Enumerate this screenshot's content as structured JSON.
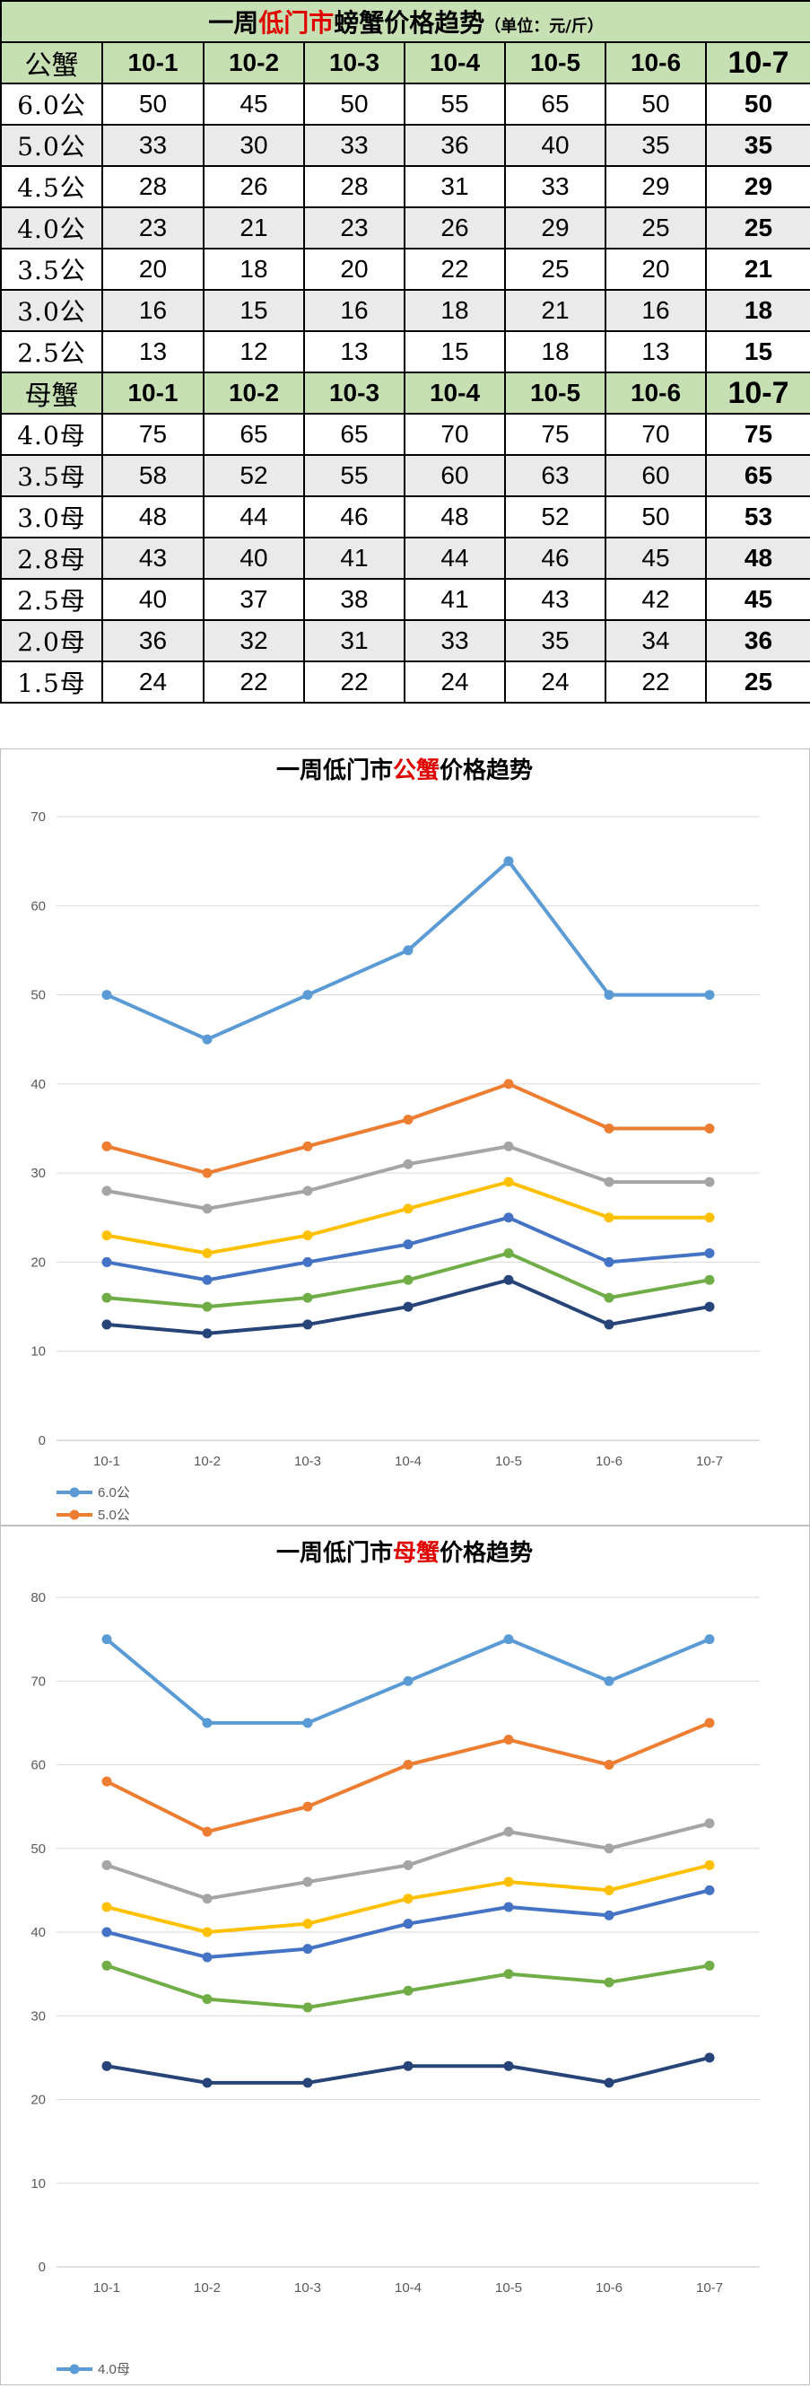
{
  "table": {
    "title_left": "一周",
    "title_red": "低门市",
    "title_right": "螃蟹价格趋势",
    "title_unit": "（单位：元/斤）",
    "male_header": "公蟹",
    "female_header": "母蟹",
    "dates": [
      "10-1",
      "10-2",
      "10-3",
      "10-4",
      "10-5",
      "10-6",
      "10-7"
    ],
    "male_rows": [
      {
        "label": "6.0公",
        "values": [
          "50",
          "45",
          "50",
          "55",
          "65",
          "50",
          "50"
        ]
      },
      {
        "label": "5.0公",
        "values": [
          "33",
          "30",
          "33",
          "36",
          "40",
          "35",
          "35"
        ]
      },
      {
        "label": "4.5公",
        "values": [
          "28",
          "26",
          "28",
          "31",
          "33",
          "29",
          "29"
        ]
      },
      {
        "label": "4.0公",
        "values": [
          "23",
          "21",
          "23",
          "26",
          "29",
          "25",
          "25"
        ]
      },
      {
        "label": "3.5公",
        "values": [
          "20",
          "18",
          "20",
          "22",
          "25",
          "20",
          "21"
        ]
      },
      {
        "label": "3.0公",
        "values": [
          "16",
          "15",
          "16",
          "18",
          "21",
          "16",
          "18"
        ]
      },
      {
        "label": "2.5公",
        "values": [
          "13",
          "12",
          "13",
          "15",
          "18",
          "13",
          "15"
        ]
      }
    ],
    "female_rows": [
      {
        "label": "4.0母",
        "values": [
          "75",
          "65",
          "65",
          "70",
          "75",
          "70",
          "75"
        ]
      },
      {
        "label": "3.5母",
        "values": [
          "58",
          "52",
          "55",
          "60",
          "63",
          "60",
          "65"
        ]
      },
      {
        "label": "3.0母",
        "values": [
          "48",
          "44",
          "46",
          "48",
          "52",
          "50",
          "53"
        ]
      },
      {
        "label": "2.8母",
        "values": [
          "43",
          "40",
          "41",
          "44",
          "46",
          "45",
          "48"
        ]
      },
      {
        "label": "2.5母",
        "values": [
          "40",
          "37",
          "38",
          "41",
          "43",
          "42",
          "45"
        ]
      },
      {
        "label": "2.0母",
        "values": [
          "36",
          "32",
          "31",
          "33",
          "35",
          "34",
          "36"
        ]
      },
      {
        "label": "1.5母",
        "values": [
          "24",
          "22",
          "22",
          "24",
          "24",
          "22",
          "25"
        ]
      }
    ]
  },
  "colors": {
    "header_bg": "#c6e0b4",
    "alt_row_bg": "#eaeaea",
    "title_accent": "#e00000",
    "series": [
      "#5b9bd5",
      "#ed7d31",
      "#a5a5a5",
      "#ffc000",
      "#4472c4",
      "#70ad47",
      "#264478"
    ]
  },
  "chart_data": [
    {
      "type": "line",
      "title_left": "一周低门市",
      "title_red": "公蟹",
      "title_right": "价格趋势",
      "categories": [
        "10-1",
        "10-2",
        "10-3",
        "10-4",
        "10-5",
        "10-6",
        "10-7"
      ],
      "ylim": [
        0,
        70
      ],
      "yticks": [
        0,
        10,
        20,
        30,
        40,
        50,
        60,
        70
      ],
      "grid": true,
      "legend": "bottom-left",
      "legend_labels": [
        "6.0公",
        "5.0公"
      ],
      "series": [
        {
          "name": "6.0公",
          "values": [
            50,
            45,
            50,
            55,
            65,
            50,
            50
          ]
        },
        {
          "name": "5.0公",
          "values": [
            33,
            30,
            33,
            36,
            40,
            35,
            35
          ]
        },
        {
          "name": "4.5公",
          "values": [
            28,
            26,
            28,
            31,
            33,
            29,
            29
          ]
        },
        {
          "name": "4.0公",
          "values": [
            23,
            21,
            23,
            26,
            29,
            25,
            25
          ]
        },
        {
          "name": "3.5公",
          "values": [
            20,
            18,
            20,
            22,
            25,
            20,
            21
          ]
        },
        {
          "name": "3.0公",
          "values": [
            16,
            15,
            16,
            18,
            21,
            16,
            18
          ]
        },
        {
          "name": "2.5公",
          "values": [
            13,
            12,
            13,
            15,
            18,
            13,
            15
          ]
        }
      ]
    },
    {
      "type": "line",
      "title_left": "一周低门市",
      "title_red": "母蟹",
      "title_right": "价格趋势",
      "categories": [
        "10-1",
        "10-2",
        "10-3",
        "10-4",
        "10-5",
        "10-6",
        "10-7"
      ],
      "ylim": [
        0,
        80
      ],
      "yticks": [
        0,
        10,
        20,
        30,
        40,
        50,
        60,
        70,
        80
      ],
      "grid": true,
      "legend": "bottom-left",
      "legend_labels": [
        "4.0母",
        "3.5母"
      ],
      "series": [
        {
          "name": "4.0母",
          "values": [
            75,
            65,
            65,
            70,
            75,
            70,
            75
          ]
        },
        {
          "name": "3.5母",
          "values": [
            58,
            52,
            55,
            60,
            63,
            60,
            65
          ]
        },
        {
          "name": "3.0母",
          "values": [
            48,
            44,
            46,
            48,
            52,
            50,
            53
          ]
        },
        {
          "name": "2.8母",
          "values": [
            43,
            40,
            41,
            44,
            46,
            45,
            48
          ]
        },
        {
          "name": "2.5母",
          "values": [
            40,
            37,
            38,
            41,
            43,
            42,
            45
          ]
        },
        {
          "name": "2.0母",
          "values": [
            36,
            32,
            31,
            33,
            35,
            34,
            36
          ]
        },
        {
          "name": "1.5母",
          "values": [
            24,
            22,
            22,
            24,
            24,
            22,
            25
          ]
        }
      ]
    }
  ]
}
